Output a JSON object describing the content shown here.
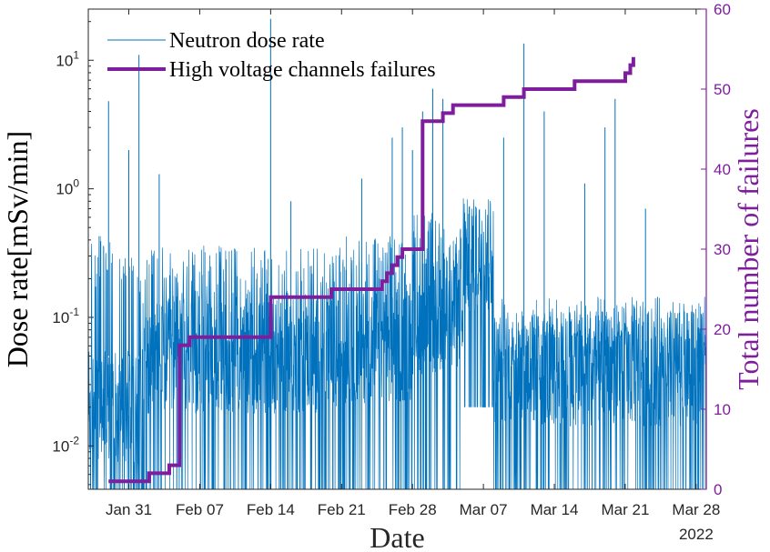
{
  "chart_data": {
    "type": "line",
    "xlabel": "Date",
    "year_label": "2022",
    "ylabel_left": "Dose rate[mSv/min]",
    "ylabel_right": "Total number of failures",
    "x_range": [
      "2022-01-27",
      "2022-03-29"
    ],
    "x_ticks": [
      {
        "date": "2022-01-31",
        "label": "Jan 31"
      },
      {
        "date": "2022-02-07",
        "label": "Feb 07"
      },
      {
        "date": "2022-02-14",
        "label": "Feb 14"
      },
      {
        "date": "2022-02-21",
        "label": "Feb 21"
      },
      {
        "date": "2022-02-28",
        "label": "Feb 28"
      },
      {
        "date": "2022-03-07",
        "label": "Mar 07"
      },
      {
        "date": "2022-03-14",
        "label": "Mar 14"
      },
      {
        "date": "2022-03-21",
        "label": "Mar 21"
      },
      {
        "date": "2022-03-28",
        "label": "Mar 28"
      }
    ],
    "y_left": {
      "scale": "log",
      "range": [
        0.0046,
        25
      ],
      "ticks": [
        {
          "value": 0.01,
          "base": "10",
          "exp": "-2"
        },
        {
          "value": 0.1,
          "base": "10",
          "exp": "-1"
        },
        {
          "value": 1,
          "base": "10",
          "exp": "0"
        },
        {
          "value": 10,
          "base": "10",
          "exp": "1"
        }
      ]
    },
    "y_right": {
      "scale": "linear",
      "range": [
        0,
        60
      ],
      "ticks": [
        0,
        10,
        20,
        30,
        40,
        50,
        60
      ]
    },
    "legend_position": "top-left",
    "grid": false,
    "series": [
      {
        "name": "Neutron dose rate",
        "axis": "left",
        "color": "#0072BD",
        "style": "thin-noisy",
        "envelope": [
          {
            "from": "2022-01-27",
            "to": "2022-02-01",
            "base": 0.02,
            "top": 0.3,
            "floor": 0.0046
          },
          {
            "from": "2022-02-01",
            "to": "2022-02-21",
            "base": 0.05,
            "top": 0.25,
            "floor": 0.0046
          },
          {
            "from": "2022-02-21",
            "to": "2022-02-28",
            "base": 0.06,
            "top": 0.3,
            "floor": 0.0046
          },
          {
            "from": "2022-02-28",
            "to": "2022-03-05",
            "base": 0.1,
            "top": 0.45,
            "floor": 0.0046
          },
          {
            "from": "2022-03-05",
            "to": "2022-03-08",
            "base": 0.3,
            "top": 0.65,
            "floor": 0.02
          },
          {
            "from": "2022-03-08",
            "to": "2022-03-29",
            "base": 0.04,
            "top": 0.1,
            "floor": 0.0046
          }
        ],
        "spikes": [
          {
            "x": "2022-01-29",
            "y": 4.8
          },
          {
            "x": "2022-01-31",
            "y": 2.0
          },
          {
            "x": "2022-02-01",
            "y": 11.0
          },
          {
            "x": "2022-02-03",
            "y": 1.3
          },
          {
            "x": "2022-02-14",
            "y": 21.0
          },
          {
            "x": "2022-02-16",
            "y": 0.8
          },
          {
            "x": "2022-02-23",
            "y": 1.2
          },
          {
            "x": "2022-02-26",
            "y": 2.5
          },
          {
            "x": "2022-02-27",
            "y": 3.0
          },
          {
            "x": "2022-02-28",
            "y": 2.0
          },
          {
            "x": "2022-03-01",
            "y": 4.0
          },
          {
            "x": "2022-03-02",
            "y": 6.0
          },
          {
            "x": "2022-03-03",
            "y": 5.0
          },
          {
            "x": "2022-03-09",
            "y": 2.5
          },
          {
            "x": "2022-03-11",
            "y": 13.5
          },
          {
            "x": "2022-03-13",
            "y": 4.0
          },
          {
            "x": "2022-03-17",
            "y": 1.1
          },
          {
            "x": "2022-03-19",
            "y": 3.0
          },
          {
            "x": "2022-03-20",
            "y": 5.0
          },
          {
            "x": "2022-03-23",
            "y": 0.7
          }
        ]
      },
      {
        "name": "High voltage channels failures",
        "axis": "right",
        "color": "#7E1E9C",
        "style": "step",
        "points": [
          {
            "x": "2022-01-29",
            "y": 1
          },
          {
            "x": "2022-02-02",
            "y": 2
          },
          {
            "x": "2022-02-04",
            "y": 3
          },
          {
            "x": "2022-02-05",
            "y": 18
          },
          {
            "x": "2022-02-06",
            "y": 19
          },
          {
            "x": "2022-02-14",
            "y": 24
          },
          {
            "x": "2022-02-20",
            "y": 25
          },
          {
            "x": "2022-02-25",
            "y": 26
          },
          {
            "x": "2022-02-25.5",
            "y": 27
          },
          {
            "x": "2022-02-26",
            "y": 28
          },
          {
            "x": "2022-02-26.5",
            "y": 29
          },
          {
            "x": "2022-02-27",
            "y": 30
          },
          {
            "x": "2022-02-29",
            "y": 45
          },
          {
            "x": "2022-03-01",
            "y": 46
          },
          {
            "x": "2022-03-03",
            "y": 47
          },
          {
            "x": "2022-03-04",
            "y": 48
          },
          {
            "x": "2022-03-09",
            "y": 49
          },
          {
            "x": "2022-03-11",
            "y": 50
          },
          {
            "x": "2022-03-16",
            "y": 51
          },
          {
            "x": "2022-03-21",
            "y": 52
          },
          {
            "x": "2022-03-21.5",
            "y": 53
          },
          {
            "x": "2022-03-21.8",
            "y": 54
          }
        ]
      }
    ]
  }
}
